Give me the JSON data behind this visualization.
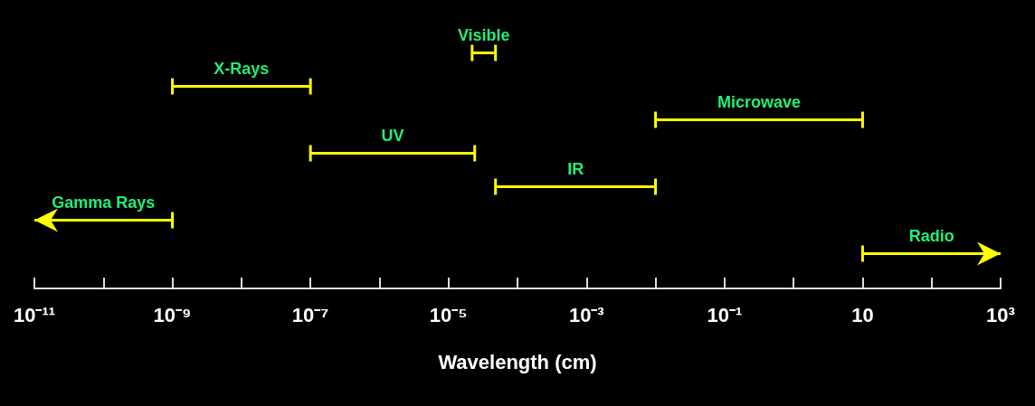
{
  "chart_data": {
    "type": "bar",
    "orientation": "horizontal",
    "xlabel": "Wavelength (cm)",
    "categories": [
      null,
      null,
      null,
      null,
      null,
      null,
      null
    ],
    "values": [
      2.6e-05,
      9.9e-08,
      9.99,
      2.39e-05,
      0.009952,
      9.9e-10,
      990
    ],
    "base": [
      2.2e-05,
      1e-09,
      0.01,
      1e-07,
      4.8e-05,
      1e-11,
      10
    ],
    "colors": [
      "#ffff00",
      "#ffff00",
      "#ffff00",
      "#ffff00",
      "#ffff00",
      "#ffff00",
      "#ffff00"
    ],
    "annotations": [
      "Visible",
      "X-Rays",
      "Microwave",
      "UV",
      "IR",
      "Gamma Rays",
      "Radio"
    ],
    "log": "x",
    "xlim": [
      1e-11,
      1000
    ],
    "xticks": [
      {
        "value": 1e-11,
        "label": "10⁻¹¹"
      },
      {
        "value": 1e-10,
        "label": null
      },
      {
        "value": 1e-09,
        "label": "10⁻⁹"
      },
      {
        "value": 1e-08,
        "label": null
      },
      {
        "value": 1e-07,
        "label": "10⁻⁷"
      },
      {
        "value": 1e-06,
        "label": null
      },
      {
        "value": 1e-05,
        "label": "10⁻⁵"
      },
      {
        "value": 0.0001,
        "label": null
      },
      {
        "value": 0.001,
        "label": "10⁻³"
      },
      {
        "value": 0.01,
        "label": null
      },
      {
        "value": 0.1,
        "label": "10⁻¹"
      },
      {
        "value": 1,
        "label": null
      },
      10,
      {
        "value": 100,
        "label": null
      },
      {
        "value": 1000,
        "label": "10³"
      }
    ],
    "grid": false
  }
}
